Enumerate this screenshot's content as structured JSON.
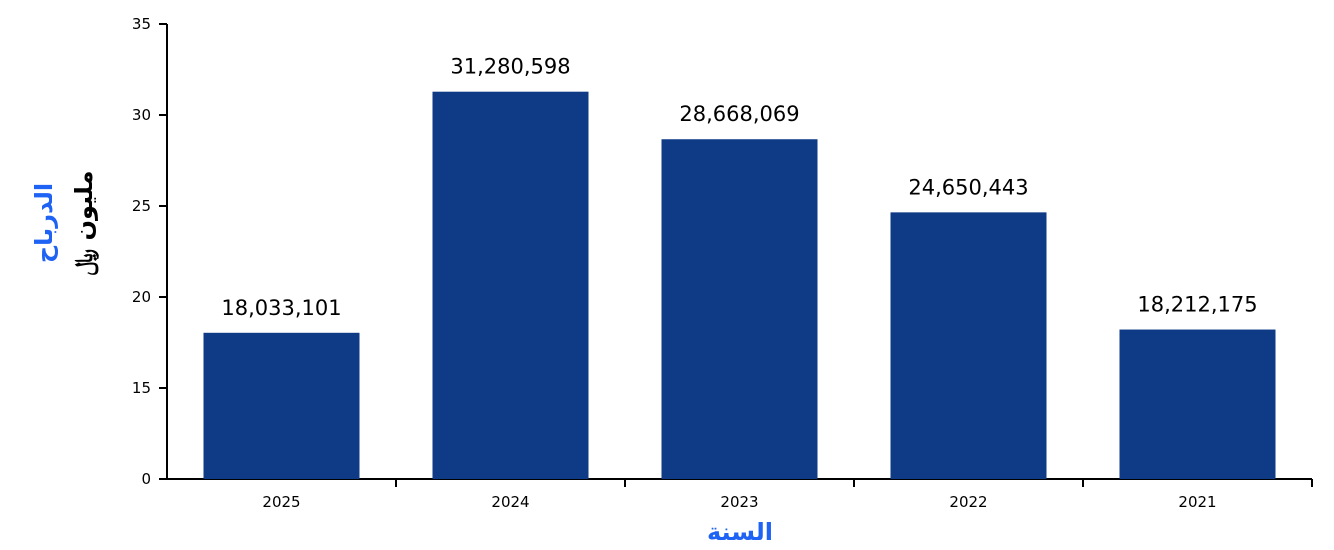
{
  "chart_data": {
    "type": "bar",
    "categories": [
      "2025",
      "2024",
      "2023",
      "2022",
      "2021"
    ],
    "values": [
      18033101,
      31280598,
      28668069,
      24650443,
      18212175
    ],
    "value_labels": [
      "18,033,101",
      "31,280,598",
      "28,668,069",
      "24,650,443",
      "18,212,175"
    ],
    "xlabel": "السنة",
    "ylabel": "الدرباح",
    "ylabel_unit": "مليون ﷼",
    "y_ticks": [
      "0",
      "15",
      "20",
      "25",
      "30",
      "35"
    ],
    "ylim": [
      0,
      35
    ],
    "axis_break_below": 15,
    "grid": false,
    "bar_color": "#0e3a86",
    "label_color": "#1f63f5"
  }
}
